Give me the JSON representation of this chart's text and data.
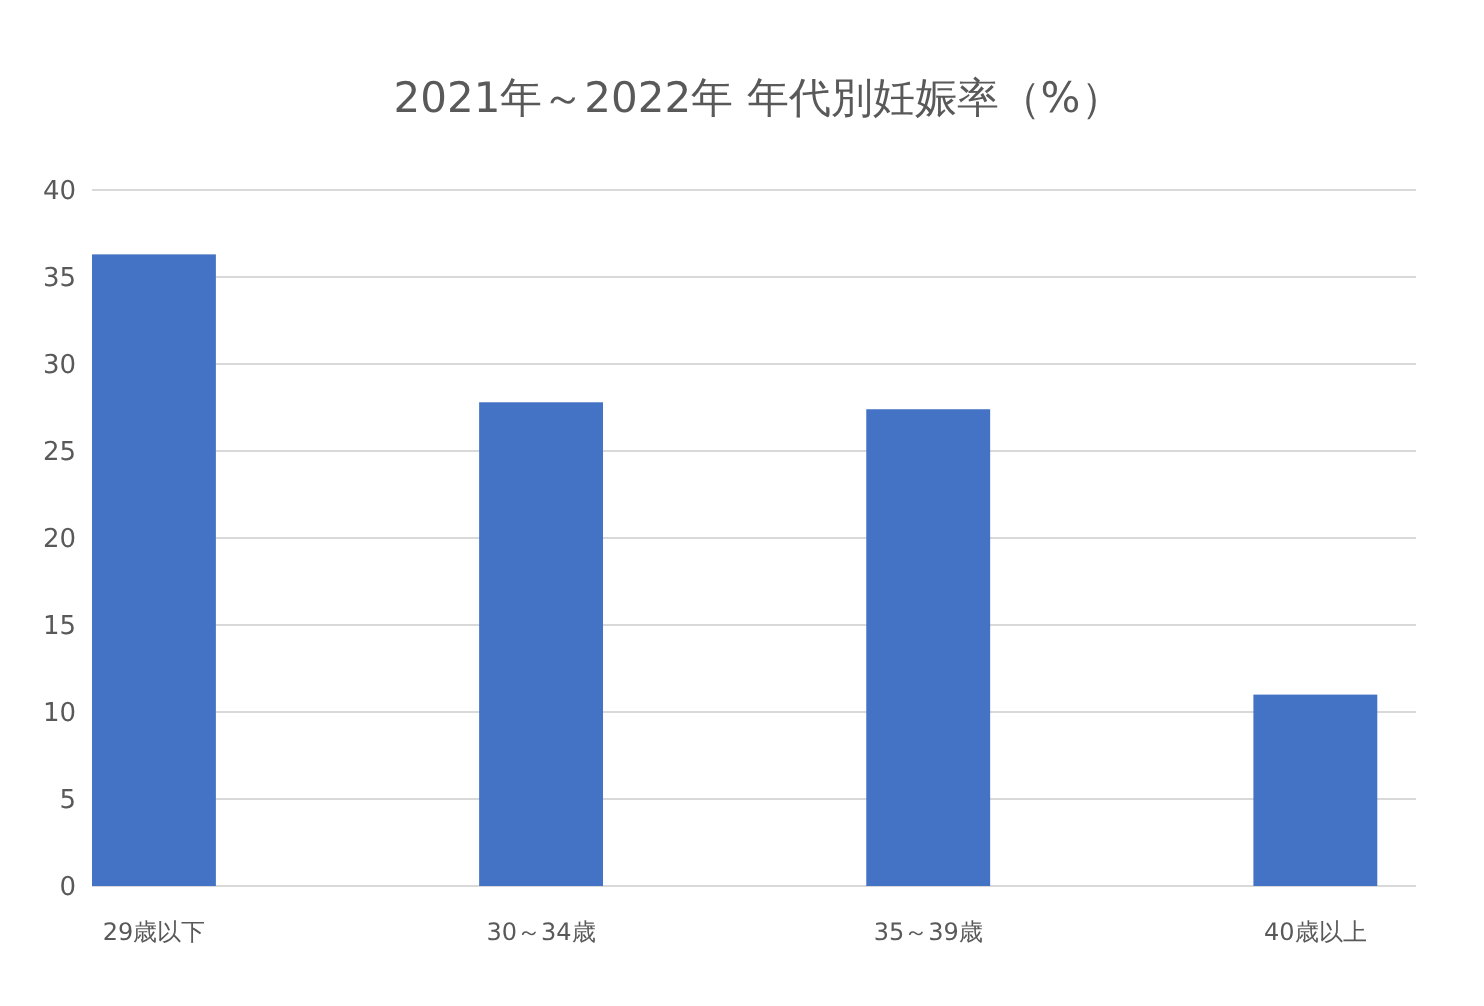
{
  "chart_data": {
    "type": "bar",
    "title": "2021年～2022年  年代別妊娠率（%）",
    "categories": [
      "29歳以下",
      "30～34歳",
      "35～39歳",
      "40歳以上"
    ],
    "values": [
      36.3,
      27.8,
      27.4,
      11.0
    ],
    "color": "#4472c4",
    "ylim": [
      0,
      40
    ],
    "yticks": [
      0,
      5,
      10,
      15,
      20,
      25,
      30,
      35,
      40
    ],
    "grid": "y"
  }
}
